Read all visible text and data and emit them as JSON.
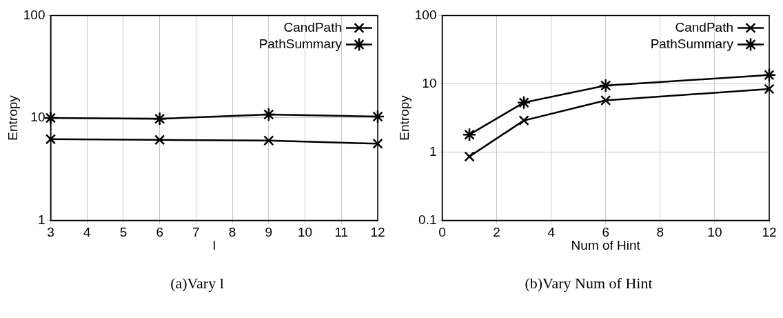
{
  "chart_data": [
    {
      "type": "line",
      "title": "(a)Vary l",
      "xlabel": "l",
      "ylabel": "Entropy",
      "x": [
        3,
        6,
        9,
        12
      ],
      "log": "y",
      "grid": true,
      "legend": "top right",
      "line_style": "solid",
      "marker": "cross",
      "xlim": [
        3,
        12
      ],
      "xticks": [
        3,
        4,
        5,
        6,
        7,
        8,
        9,
        10,
        11,
        12
      ],
      "ylim": [
        1,
        100
      ],
      "yticks": [
        1,
        10,
        100
      ],
      "series": [
        {
          "name": "CandPath",
          "color": "#000000",
          "values": [
            6.2,
            6.1,
            6.0,
            5.6
          ]
        },
        {
          "name": "PathSummary",
          "color": "#000000",
          "values": [
            10,
            9.8,
            10.8,
            10.3
          ]
        }
      ]
    },
    {
      "type": "line",
      "title": "(b)Vary Num of Hint",
      "xlabel": "Num of Hint",
      "ylabel": "Entropy",
      "x": [
        1,
        3,
        6,
        12
      ],
      "log": "y",
      "grid": true,
      "legend": "top right",
      "line_style": "solid",
      "marker": "cross",
      "xlim": [
        0,
        12
      ],
      "xticks": [
        0,
        2,
        4,
        6,
        8,
        10,
        12
      ],
      "ylim": [
        0.1,
        100
      ],
      "yticks": [
        0.1,
        1,
        10,
        100
      ],
      "series": [
        {
          "name": "CandPath",
          "color": "#000000",
          "values": [
            0.86,
            2.9,
            5.7,
            8.4
          ]
        },
        {
          "name": "PathSummary",
          "color": "#000000",
          "values": [
            1.8,
            5.3,
            9.4,
            13.4
          ]
        }
      ]
    }
  ]
}
